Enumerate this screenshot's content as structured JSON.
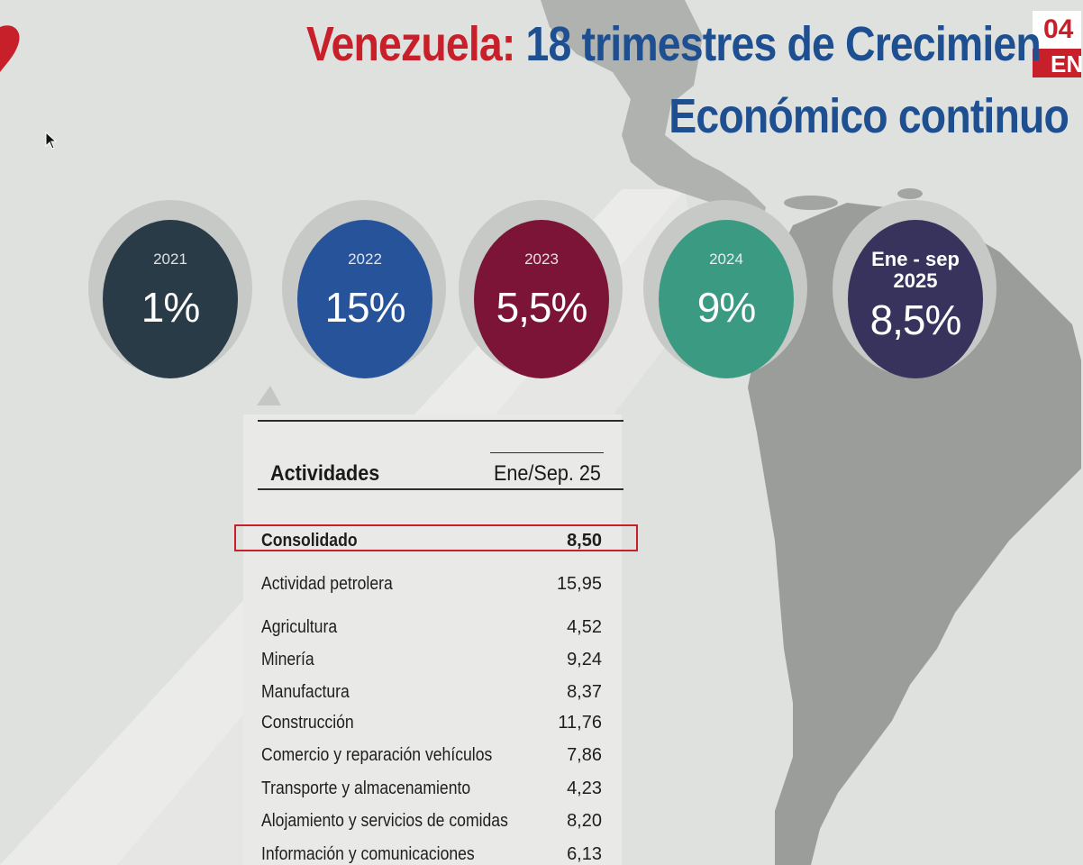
{
  "badge": {
    "top": "04",
    "bottom": "EN"
  },
  "title": {
    "country": "Venezuela:",
    "line1_rest": "18 trimestres de Crecimien",
    "line2": "Económico continuo"
  },
  "colors": {
    "red": "#c8202a",
    "blue": "#1e4f91",
    "circle_2021": "#283b47",
    "circle_2022": "#27539b",
    "circle_2023": "#7c1438",
    "circle_2024": "#3a9a82",
    "circle_2025": "#38335d"
  },
  "circles": [
    {
      "year": "2021",
      "value": "1%"
    },
    {
      "year": "2022",
      "value": "15%"
    },
    {
      "year": "2023",
      "value": "5,5%"
    },
    {
      "year": "2024",
      "value": "9%"
    },
    {
      "year_line1": "Ene - sep",
      "year_line2": "2025",
      "value": "8,5%"
    }
  ],
  "table": {
    "header_activity": "Actividades",
    "header_period": "Ene/Sep. 25",
    "rows": [
      {
        "label": "Consolidado",
        "value": "8,50"
      },
      {
        "label": "Actividad petrolera",
        "value": "15,95"
      },
      {
        "label": "Agricultura",
        "value": "4,52"
      },
      {
        "label": "Minería",
        "value": "9,24"
      },
      {
        "label": "Manufactura",
        "value": "8,37"
      },
      {
        "label": "Construcción",
        "value": "11,76"
      },
      {
        "label": "Comercio y reparación vehículos",
        "value": "7,86"
      },
      {
        "label": "Transporte y almacenamiento",
        "value": "4,23"
      },
      {
        "label": "Alojamiento y servicios de comidas",
        "value": "8,20"
      },
      {
        "label": "Información y comunicaciones",
        "value": "6,13"
      }
    ]
  }
}
